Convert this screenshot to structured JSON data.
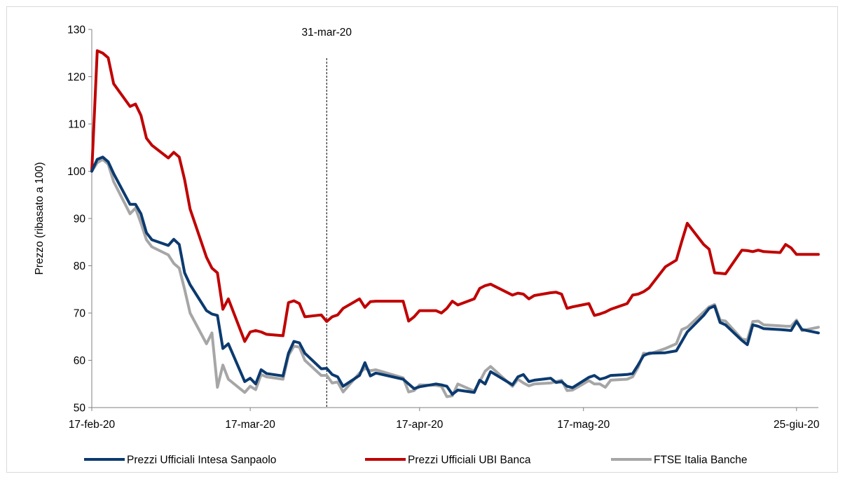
{
  "chart_data": {
    "type": "line",
    "title": "",
    "xlabel": "",
    "ylabel": "Prezzo (ribasato a 100)",
    "ylim": [
      50,
      130
    ],
    "yticks": [
      50,
      60,
      70,
      80,
      90,
      100,
      110,
      120,
      130
    ],
    "xlim": [
      "2020-02-17",
      "2020-06-29"
    ],
    "xticks": [
      {
        "date": "2020-02-17",
        "label": "17-feb-20"
      },
      {
        "date": "2020-03-17",
        "label": "17-mar-20"
      },
      {
        "date": "2020-04-17",
        "label": "17-apr-20"
      },
      {
        "date": "2020-05-17",
        "label": "17-mag-20"
      },
      {
        "date": "2020-06-25",
        "label": "25-giu-20"
      }
    ],
    "grid": false,
    "legend": "bottom",
    "annotations": [
      {
        "type": "vline",
        "date": "2020-03-31",
        "label": "31-mar-20",
        "style": "dashed"
      }
    ],
    "x": [
      "2020-02-17",
      "2020-02-18",
      "2020-02-19",
      "2020-02-20",
      "2020-02-21",
      "2020-02-24",
      "2020-02-25",
      "2020-02-26",
      "2020-02-27",
      "2020-02-28",
      "2020-03-02",
      "2020-03-03",
      "2020-03-04",
      "2020-03-05",
      "2020-03-06",
      "2020-03-09",
      "2020-03-10",
      "2020-03-11",
      "2020-03-12",
      "2020-03-13",
      "2020-03-16",
      "2020-03-17",
      "2020-03-18",
      "2020-03-19",
      "2020-03-20",
      "2020-03-23",
      "2020-03-24",
      "2020-03-25",
      "2020-03-26",
      "2020-03-27",
      "2020-03-30",
      "2020-03-31",
      "2020-04-01",
      "2020-04-02",
      "2020-04-03",
      "2020-04-06",
      "2020-04-07",
      "2020-04-08",
      "2020-04-09",
      "2020-04-14",
      "2020-04-15",
      "2020-04-16",
      "2020-04-17",
      "2020-04-20",
      "2020-04-21",
      "2020-04-22",
      "2020-04-23",
      "2020-04-24",
      "2020-04-27",
      "2020-04-28",
      "2020-04-29",
      "2020-04-30",
      "2020-05-04",
      "2020-05-05",
      "2020-05-06",
      "2020-05-07",
      "2020-05-08",
      "2020-05-11",
      "2020-05-12",
      "2020-05-13",
      "2020-05-14",
      "2020-05-15",
      "2020-05-18",
      "2020-05-19",
      "2020-05-20",
      "2020-05-21",
      "2020-05-22",
      "2020-05-25",
      "2020-05-26",
      "2020-05-27",
      "2020-05-28",
      "2020-05-29",
      "2020-06-01",
      "2020-06-03",
      "2020-06-04",
      "2020-06-05",
      "2020-06-08",
      "2020-06-09",
      "2020-06-10",
      "2020-06-11",
      "2020-06-12",
      "2020-06-15",
      "2020-06-16",
      "2020-06-17",
      "2020-06-18",
      "2020-06-19",
      "2020-06-22",
      "2020-06-23",
      "2020-06-24",
      "2020-06-25",
      "2020-06-26",
      "2020-06-29"
    ],
    "series": [
      {
        "name": "Prezzi Ufficiali Intesa Sanpaolo",
        "color": "#0b3a6f",
        "values": [
          100,
          102.5,
          103,
          102,
          99.5,
          93,
          93,
          91,
          87,
          85.5,
          84.3,
          85.6,
          84.5,
          78.5,
          76,
          70.5,
          69.8,
          69.5,
          62.5,
          63.5,
          55.5,
          56.2,
          55,
          58,
          57.2,
          56.7,
          61.5,
          64,
          63.7,
          61.5,
          58.2,
          58.3,
          57,
          56.5,
          54.5,
          56.8,
          59.5,
          56.7,
          57.3,
          56,
          55,
          54,
          54.4,
          55,
          54.8,
          54.5,
          52.8,
          53.7,
          53.2,
          55.8,
          55,
          57.6,
          54.8,
          56.5,
          57,
          55.5,
          55.8,
          56.2,
          55.3,
          55.5,
          54.5,
          54.2,
          56.4,
          56.8,
          56,
          56.3,
          56.8,
          57,
          57.2,
          59,
          61,
          61.5,
          61.6,
          62,
          64,
          66,
          69.5,
          71,
          71.5,
          68,
          67.5,
          64.2,
          63.3,
          67.5,
          67.2,
          66.7,
          66.5,
          66.4,
          66.3,
          68.2,
          66.5,
          65.8
        ]
      },
      {
        "name": "Prezzi Ufficiali UBI Banca",
        "color": "#c00000",
        "values": [
          100,
          125.5,
          125,
          124,
          118.5,
          113.7,
          114.2,
          111.8,
          107,
          105.5,
          102.8,
          104,
          103,
          98.2,
          92,
          81.8,
          79.5,
          78.5,
          70.8,
          73,
          64,
          66,
          66.3,
          66,
          65.5,
          65.2,
          72.2,
          72.6,
          72,
          69.2,
          69.6,
          68.2,
          69.2,
          69.6,
          71,
          73,
          71.2,
          72.4,
          72.5,
          72.5,
          68.3,
          69.2,
          70.5,
          70.5,
          70,
          71,
          72.5,
          71.7,
          73,
          75.2,
          75.8,
          76.1,
          73.8,
          74.2,
          74,
          73,
          73.7,
          74.3,
          74.4,
          74,
          71,
          71.3,
          72,
          69.5,
          69.8,
          70.2,
          70.8,
          72,
          73.8,
          74,
          74.5,
          75.3,
          79.8,
          81.2,
          85.2,
          89,
          84.5,
          83.5,
          78.5,
          78.4,
          78.3,
          83.3,
          83.2,
          83,
          83.3,
          83,
          82.8,
          84.5,
          83.8,
          82.4,
          82.4,
          82.4
        ]
      },
      {
        "name": "FTSE Italia Banche",
        "color": "#a6a6a6",
        "values": [
          100,
          101.8,
          102.5,
          101.5,
          97.8,
          91,
          92.2,
          89,
          85.5,
          84,
          82.3,
          80.5,
          79.5,
          75,
          70,
          63.5,
          65.8,
          54.3,
          59,
          56,
          53.2,
          54.5,
          53.8,
          57,
          56.5,
          56,
          61,
          63,
          62.8,
          60,
          56.8,
          56.8,
          55.2,
          55.4,
          53.3,
          57.3,
          58.3,
          57.8,
          58,
          56.3,
          53.3,
          53.6,
          54.8,
          54.7,
          54.5,
          52.3,
          52.5,
          55,
          53.5,
          55.5,
          57.7,
          58.7,
          54.5,
          56,
          55.2,
          54.6,
          55,
          55.2,
          55.5,
          55.8,
          53.6,
          53.7,
          55.7,
          55,
          55,
          54.3,
          55.8,
          56,
          56.5,
          58.5,
          61.5,
          61.3,
          62.5,
          63.5,
          66.5,
          67,
          70.2,
          71.3,
          71.8,
          68.5,
          68.3,
          64.5,
          64.3,
          68.2,
          68.3,
          67.5,
          67.3,
          67.2,
          67.2,
          68.5,
          66.3,
          67
        ]
      }
    ]
  }
}
